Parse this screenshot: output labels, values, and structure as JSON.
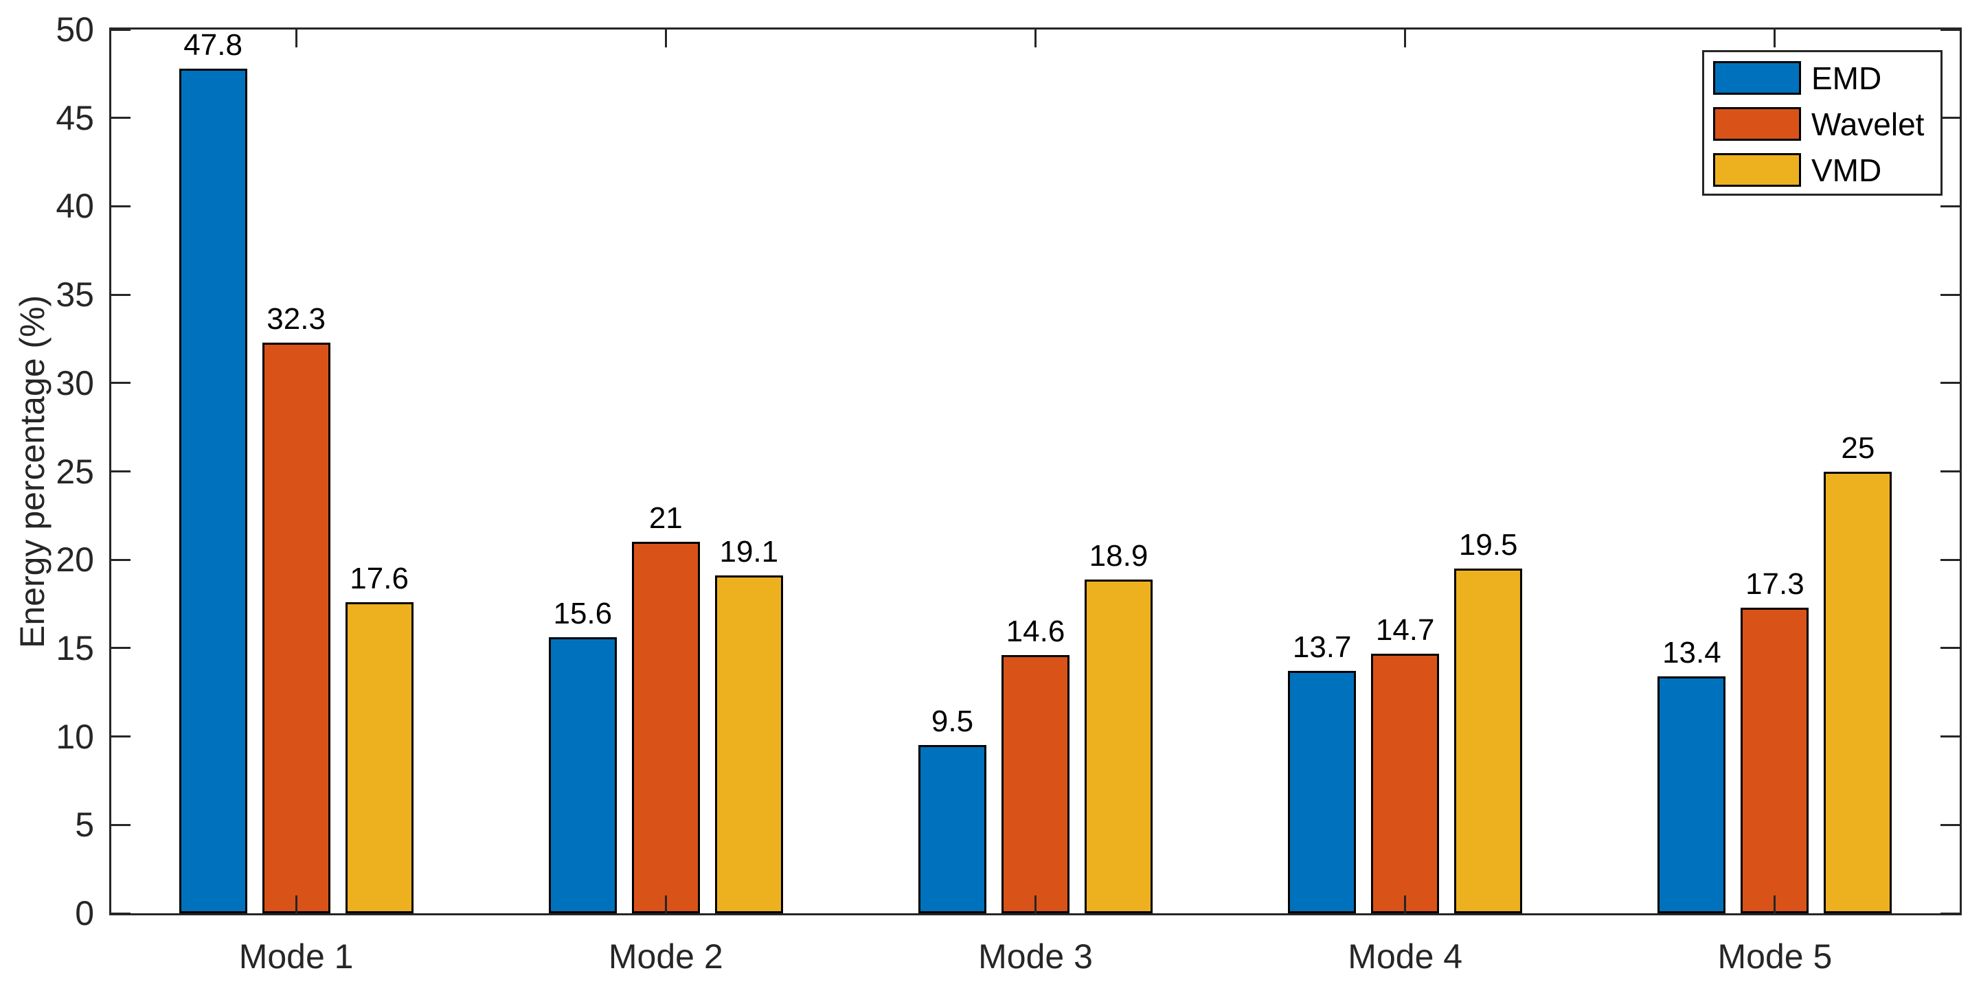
{
  "chart_data": {
    "type": "bar",
    "title": "",
    "xlabel": "",
    "ylabel": "Energy percentage (%)",
    "ylim": [
      0,
      50
    ],
    "ytick_step": 5,
    "ytick_labels": [
      "0",
      "5",
      "10",
      "15",
      "20",
      "25",
      "30",
      "35",
      "40",
      "45",
      "50"
    ],
    "categories": [
      "Mode 1",
      "Mode 2",
      "Mode 3",
      "Mode 4",
      "Mode 5"
    ],
    "series": [
      {
        "name": "EMD",
        "color": "#0072BD",
        "values": [
          47.8,
          15.6,
          9.5,
          13.7,
          13.4
        ],
        "labels": [
          "47.8",
          "15.6",
          "9.5",
          "13.7",
          "13.4"
        ]
      },
      {
        "name": "Wavelet",
        "color": "#D95319",
        "values": [
          32.3,
          21,
          14.6,
          14.7,
          17.3
        ],
        "labels": [
          "32.3",
          "21",
          "14.6",
          "14.7",
          "17.3"
        ]
      },
      {
        "name": "VMD",
        "color": "#EDB120",
        "values": [
          17.6,
          19.1,
          18.9,
          19.5,
          25
        ],
        "labels": [
          "17.6",
          "19.1",
          "18.9",
          "19.5",
          "25"
        ]
      }
    ],
    "legend": {
      "position": "northeast",
      "entries": [
        "EMD",
        "Wavelet",
        "VMD"
      ]
    },
    "grid": false,
    "colors": {
      "axis": "#262626",
      "tick_label_text": "#262626",
      "value_label_text": "#000000",
      "bar_edge": "#000000",
      "background": "#ffffff",
      "legend_border": "#262626"
    }
  }
}
